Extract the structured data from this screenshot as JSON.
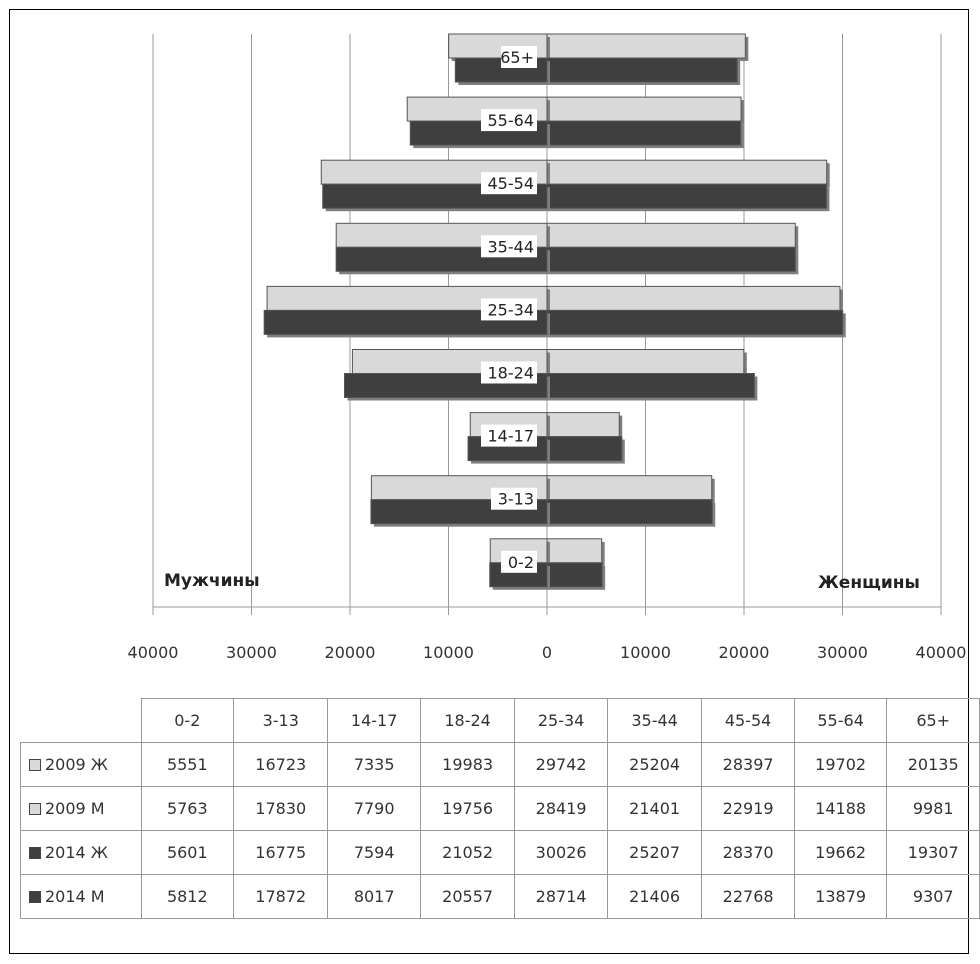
{
  "chart_data": {
    "type": "bar",
    "orientation": "horizontal",
    "layout": "population-pyramid",
    "categories": [
      "0-2",
      "3-13",
      "14-17",
      "18-24",
      "25-34",
      "35-44",
      "45-54",
      "55-64",
      "65+"
    ],
    "series": [
      {
        "name": "2009 Ж",
        "side": "right",
        "color": "#d9d9d9",
        "values": [
          5551,
          16723,
          7335,
          19983,
          29742,
          25204,
          28397,
          19702,
          20135
        ]
      },
      {
        "name": "2009 М",
        "side": "left",
        "color": "#d9d9d9",
        "values": [
          5763,
          17830,
          7790,
          19756,
          28419,
          21401,
          22919,
          14188,
          9981
        ]
      },
      {
        "name": "2014 Ж",
        "side": "right",
        "color": "#3f3f3f",
        "values": [
          5601,
          16775,
          7594,
          21052,
          30026,
          25207,
          28370,
          19662,
          19307
        ]
      },
      {
        "name": "2014 М",
        "side": "left",
        "color": "#3f3f3f",
        "values": [
          5812,
          17872,
          8017,
          20557,
          28714,
          21406,
          22768,
          13879,
          9307
        ]
      }
    ],
    "xlim": [
      -40000,
      40000
    ],
    "x_ticks": [
      -40000,
      -30000,
      -20000,
      -10000,
      0,
      10000,
      20000,
      30000,
      40000
    ],
    "x_tick_labels": [
      "40000",
      "30000",
      "20000",
      "10000",
      "0",
      "10000",
      "20000",
      "30000",
      "40000"
    ],
    "left_label": "Мужчины",
    "right_label": "Женщины",
    "grid": true,
    "data_table": true
  }
}
